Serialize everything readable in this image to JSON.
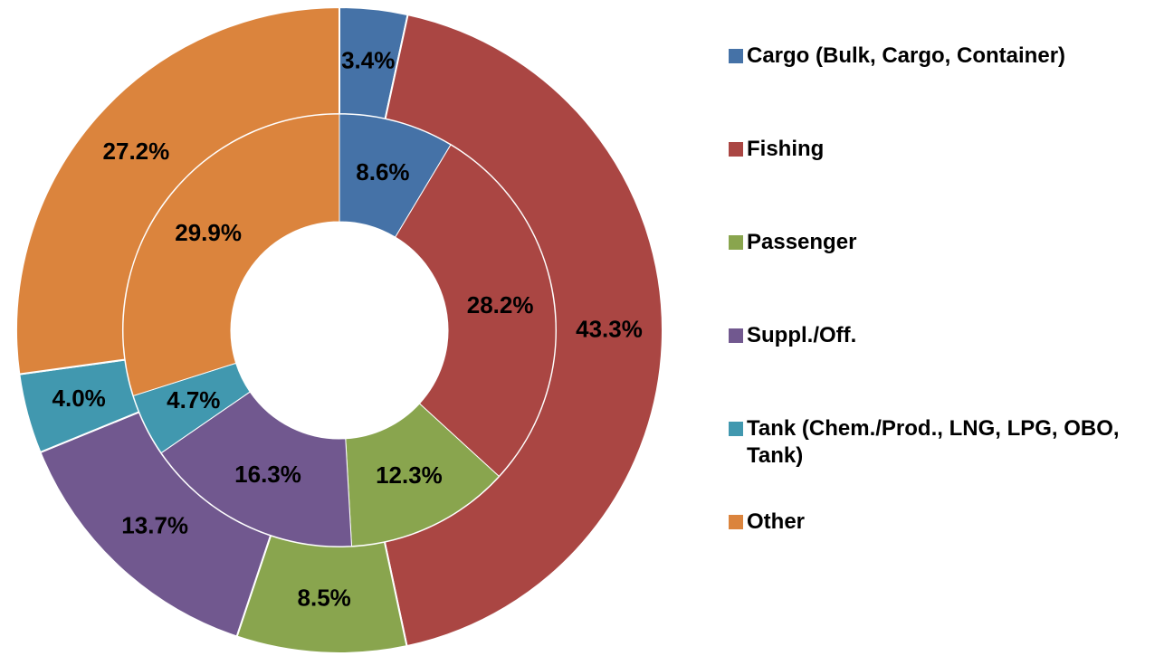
{
  "chart_data": {
    "type": "nested-donut",
    "categories": [
      "Cargo (Bulk, Cargo, Container)",
      "Fishing",
      "Passenger",
      "Suppl./Off.",
      "Tank (Chem./Prod., LNG, LPG, OBO, Tank)",
      "Other"
    ],
    "colors": [
      "#4572a7",
      "#aa4643",
      "#89a54e",
      "#71588f",
      "#4198af",
      "#db843d"
    ],
    "series": [
      {
        "values": [
          3.4,
          43.3,
          8.5,
          13.7,
          4.0,
          27.2
        ],
        "value_labels": [
          "3.4%",
          "43.3%",
          "8.5%",
          "13.7%",
          "4.0%",
          "27.2%"
        ]
      },
      {
        "values": [
          8.6,
          28.2,
          12.3,
          16.3,
          4.7,
          29.9
        ],
        "value_labels": [
          "8.6%",
          "28.2%",
          "12.3%",
          "16.3%",
          "4.7%",
          "29.9%"
        ]
      }
    ],
    "legend": "right"
  }
}
